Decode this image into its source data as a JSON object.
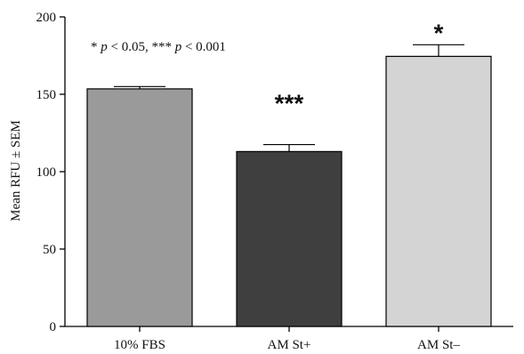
{
  "chart_data": {
    "type": "bar",
    "categories": [
      "10% FBS",
      "AM St+",
      "AM St–"
    ],
    "values": [
      153.5,
      113,
      174.5
    ],
    "errors": [
      1.5,
      4.5,
      7.5
    ],
    "significance": [
      "",
      "***",
      "*"
    ],
    "colors": [
      "#9a9a9a",
      "#3f3f3f",
      "#d4d4d4"
    ],
    "ylabel": "Mean RFU ± SEM",
    "ylim": [
      0,
      200
    ],
    "yticks": [
      0,
      50,
      100,
      150,
      200
    ],
    "annotation": "* p < 0.05, *** p < 0.001",
    "grid": false
  }
}
